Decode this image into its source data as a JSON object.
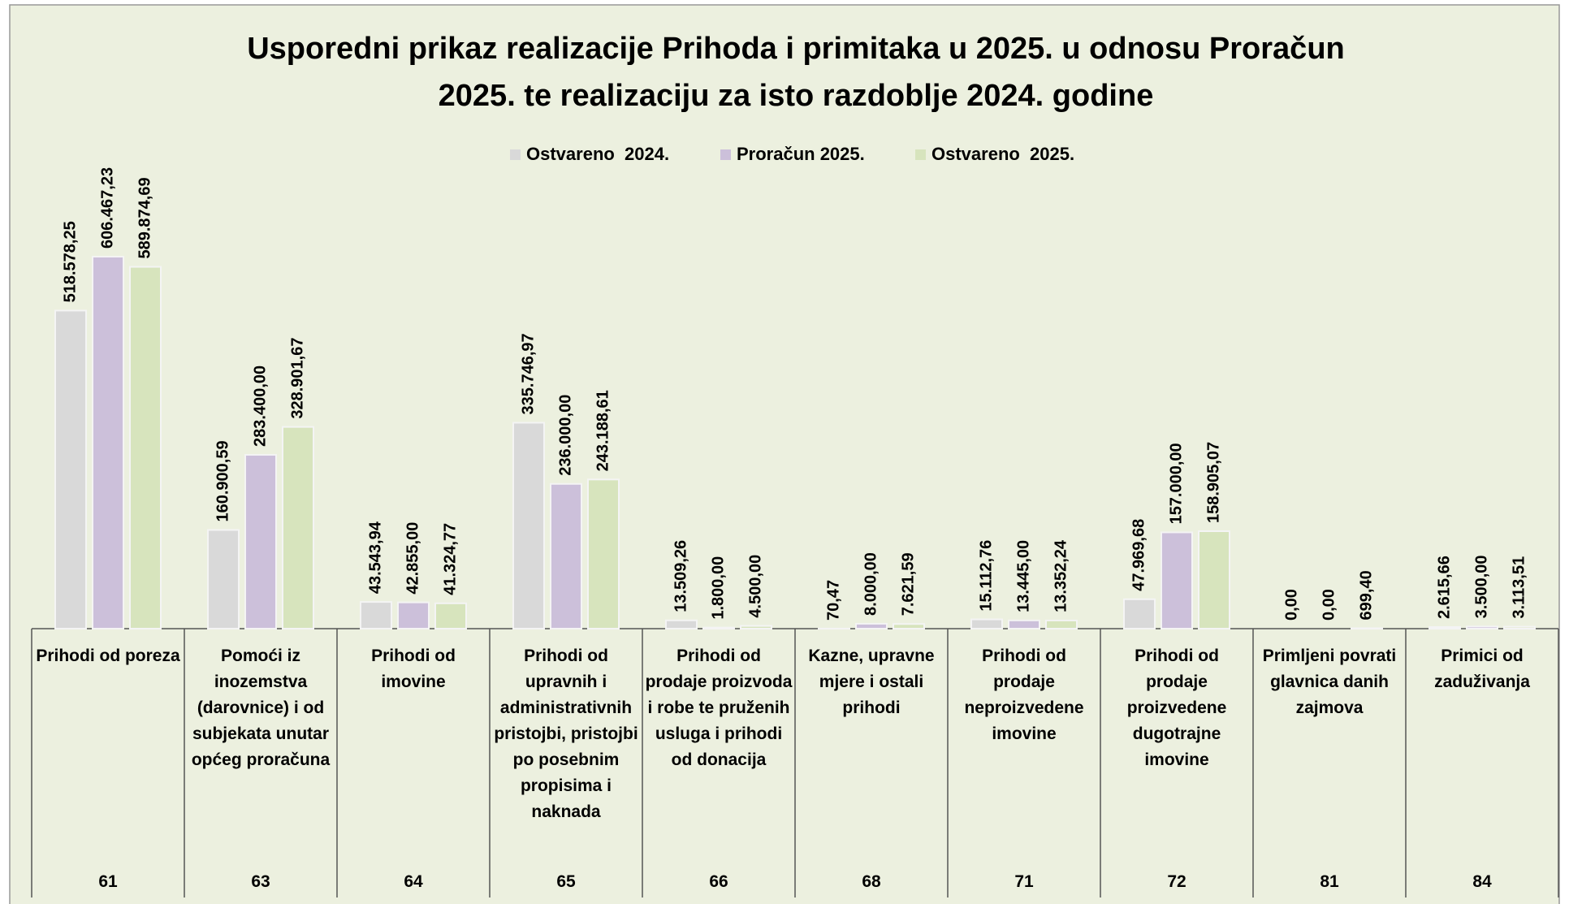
{
  "chart_data": {
    "type": "bar",
    "title": [
      "Usporedni prikaz realizacije Prihoda i primitaka u 2025. u odnosu Proračun",
      "2025. te realizaciju za isto razdoblje 2024. godine"
    ],
    "categories": [
      "Prihodi od poreza",
      "Pomoći iz inozemstva (darovnice) i od subjekata unutar općeg proračuna",
      "Prihodi od imovine",
      "Prihodi od upravnih i administrativnih pristojbi, pristojbi po posebnim propisima i naknada",
      "Prihodi od prodaje proizvoda i robe te pruženih usluga i prihodi od donacija",
      "Kazne, upravne mjere i ostali prihodi",
      "Prihodi od prodaje neproizvedene imovine",
      "Prihodi od prodaje proizvedene dugotrajne imovine",
      "Primljeni povrati glavnica danih zajmova",
      "Primici od zaduživanja"
    ],
    "codes": [
      "61",
      "63",
      "64",
      "65",
      "66",
      "68",
      "71",
      "72",
      "81",
      "84"
    ],
    "legend": "top",
    "series": [
      {
        "name": "Ostvareno  2024.",
        "color": "#d9d9d9",
        "values": [
          518578.25,
          160900.59,
          43543.94,
          335746.97,
          13509.26,
          70.47,
          15112.76,
          47969.68,
          0,
          2615.66
        ],
        "value_labels": [
          "518.578,25",
          "160.900,59",
          "43.543,94",
          "335.746,97",
          "13.509,26",
          "70,47",
          "15.112,76",
          "47.969,68",
          "0,00",
          "2.615,66"
        ]
      },
      {
        "name": "Proračun 2025.",
        "color": "#ccc0da",
        "values": [
          606467.23,
          283400,
          42855,
          236000,
          1800,
          8000,
          13445,
          157000,
          0,
          3500
        ],
        "value_labels": [
          "606.467,23",
          "283.400,00",
          "42.855,00",
          "236.000,00",
          "1.800,00",
          "8.000,00",
          "13.445,00",
          "157.000,00",
          "0,00",
          "3.500,00"
        ]
      },
      {
        "name": "Ostvareno  2025.",
        "color": "#d7e4bd",
        "values": [
          589874.69,
          328901.67,
          41324.77,
          243188.61,
          4500,
          7621.59,
          13352.24,
          158905.07,
          699.4,
          3113.51
        ],
        "value_labels": [
          "589.874,69",
          "328.901,67",
          "41.324,77",
          "243.188,61",
          "4.500,00",
          "7.621,59",
          "13.352,24",
          "158.905,07",
          "699,40",
          "3.113,51"
        ]
      }
    ]
  }
}
